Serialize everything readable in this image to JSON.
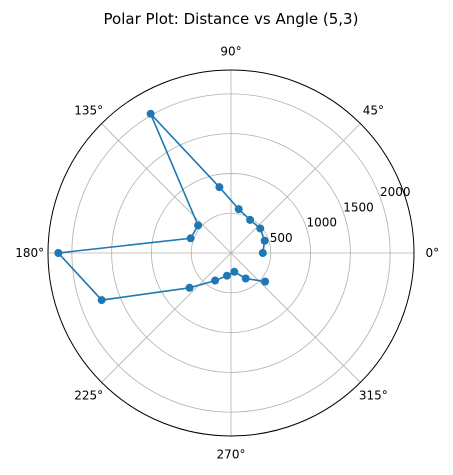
{
  "chart_data": {
    "type": "line",
    "projection": "polar",
    "title": "Polar Plot: Distance vs Angle (5,3)",
    "theta_unit": "degrees",
    "theta_tick_labels": [
      "0°",
      "45°",
      "90°",
      "135°",
      "180°",
      "225°",
      "270°",
      "315°"
    ],
    "theta_ticks": [
      0,
      45,
      90,
      135,
      180,
      225,
      270,
      315
    ],
    "r_tick_labels": [
      "500",
      "1000",
      "1500",
      "2000"
    ],
    "r_ticks": [
      500,
      1000,
      1500,
      2000
    ],
    "rlim": [
      0,
      2300
    ],
    "grid": true,
    "marker": "circle",
    "series": [
      {
        "color": "#1f77b4",
        "theta": [
          0,
          20,
          40,
          60,
          80,
          100,
          120,
          140,
          160,
          180,
          200,
          220,
          240,
          260,
          280,
          300,
          320
        ],
        "r": [
          400,
          450,
          480,
          480,
          560,
          840,
          2020,
          540,
          540,
          2170,
          1730,
          680,
          400,
          290,
          240,
          370,
          560
        ]
      }
    ]
  }
}
